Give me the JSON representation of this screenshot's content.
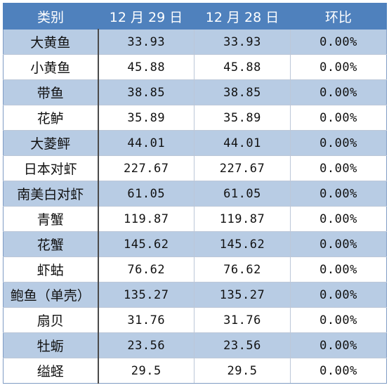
{
  "table": {
    "headers": [
      "类别",
      "12 月 29 日",
      "12 月 28 日",
      "环比"
    ],
    "rows": [
      {
        "name": "大黄鱼",
        "dec29": "33.93",
        "dec28": "33.93",
        "change": "0.00%"
      },
      {
        "name": "小黄鱼",
        "dec29": "45.88",
        "dec28": "45.88",
        "change": "0.00%"
      },
      {
        "name": "带鱼",
        "dec29": "38.85",
        "dec28": "38.85",
        "change": "0.00%"
      },
      {
        "name": "花鲈",
        "dec29": "35.89",
        "dec28": "35.89",
        "change": "0.00%"
      },
      {
        "name": "大菱鲆",
        "dec29": "44.01",
        "dec28": "44.01",
        "change": "0.00%"
      },
      {
        "name": "日本对虾",
        "dec29": "227.67",
        "dec28": "227.67",
        "change": "0.00%"
      },
      {
        "name": "南美白对虾",
        "dec29": "61.05",
        "dec28": "61.05",
        "change": "0.00%"
      },
      {
        "name": "青蟹",
        "dec29": "119.87",
        "dec28": "119.87",
        "change": "0.00%"
      },
      {
        "name": "花蟹",
        "dec29": "145.62",
        "dec28": "145.62",
        "change": "0.00%"
      },
      {
        "name": "虾蛄",
        "dec29": "76.62",
        "dec28": "76.62",
        "change": "0.00%"
      },
      {
        "name": "鲍鱼（单壳）",
        "dec29": "135.27",
        "dec28": "135.27",
        "change": "0.00%"
      },
      {
        "name": "扇贝",
        "dec29": "31.76",
        "dec28": "31.76",
        "change": "0.00%"
      },
      {
        "name": "牡蛎",
        "dec29": "23.56",
        "dec28": "23.56",
        "change": "0.00%"
      },
      {
        "name": "缢蛏",
        "dec29": "29.5",
        "dec28": "29.5",
        "change": "0.00%"
      }
    ]
  },
  "colors": {
    "header_bg": "#4f81bd",
    "header_text": "#ffffff",
    "band_row_bg": "#b8cce4",
    "plain_row_bg": "#ffffff",
    "divider": "#4a4a4a"
  }
}
